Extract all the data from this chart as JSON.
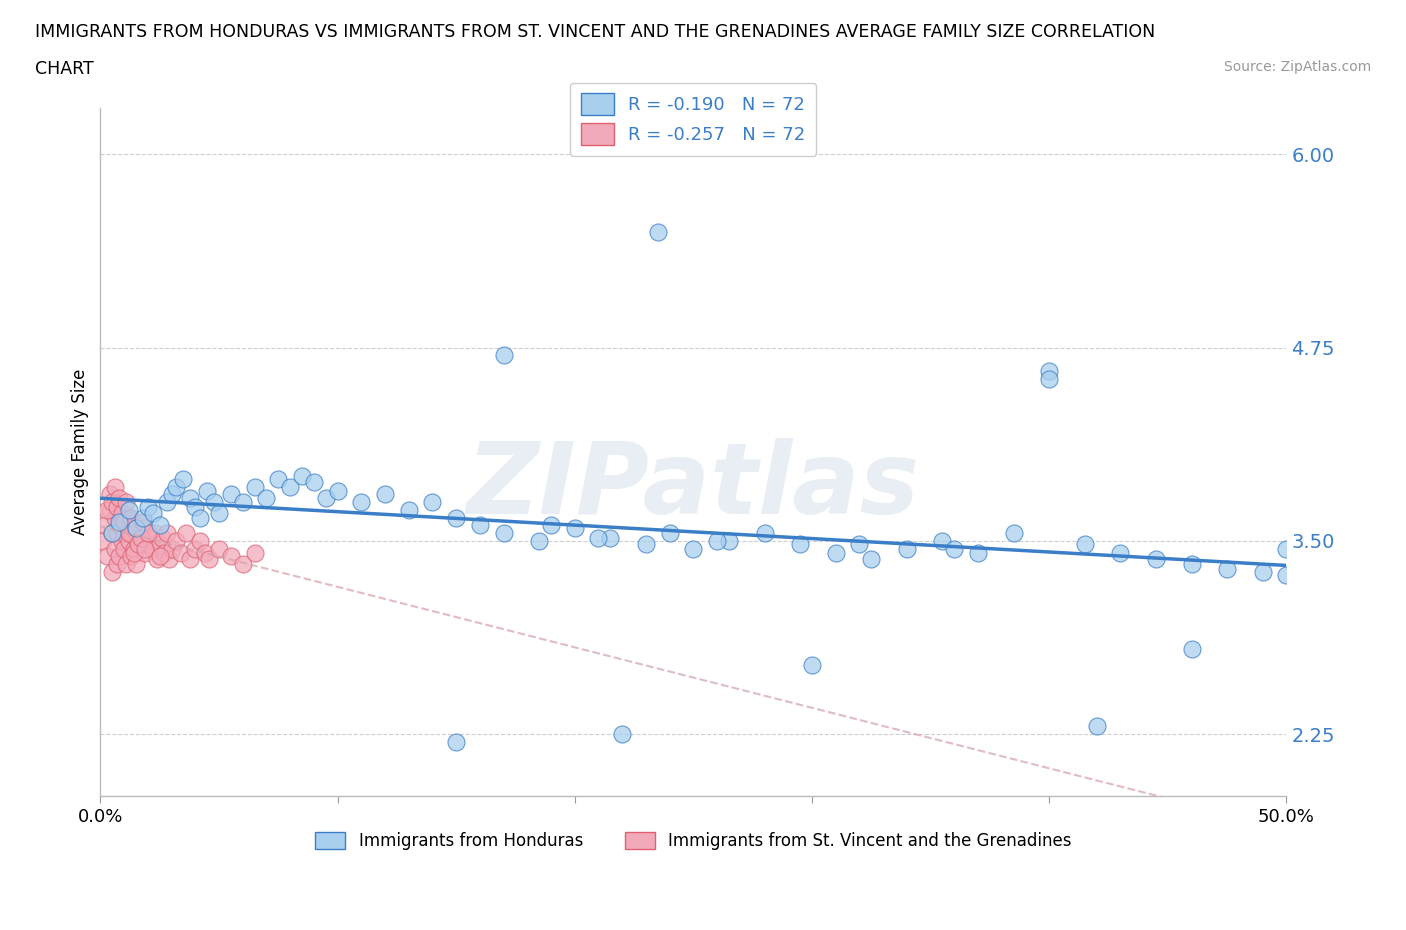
{
  "title_line1": "IMMIGRANTS FROM HONDURAS VS IMMIGRANTS FROM ST. VINCENT AND THE GRENADINES AVERAGE FAMILY SIZE CORRELATION",
  "title_line2": "CHART",
  "source": "Source: ZipAtlas.com",
  "ylabel": "Average Family Size",
  "xlim": [
    0.0,
    0.5
  ],
  "ylim": [
    1.85,
    6.3
  ],
  "yticks": [
    2.25,
    3.5,
    4.75,
    6.0
  ],
  "ytick_labels": [
    "2.25",
    "3.50",
    "4.75",
    "6.00"
  ],
  "xtick_vals": [
    0.0,
    0.1,
    0.2,
    0.3,
    0.4,
    0.5
  ],
  "xtick_labels": [
    "0.0%",
    "",
    "",
    "",
    "",
    "50.0%"
  ],
  "legend_entry1": "R = -0.190   N = 72",
  "legend_entry2": "R = -0.257   N = 72",
  "legend_label1": "Immigrants from Honduras",
  "legend_label2": "Immigrants from St. Vincent and the Grenadines",
  "color_blue": "#A8CFEE",
  "color_pink": "#F2AABB",
  "color_blue_line": "#3B7EC8",
  "color_pink_line": "#E06070",
  "color_dashed_line": "#C8C8D0",
  "watermark": "ZIPatlas",
  "hon_x": [
    0.005,
    0.008,
    0.012,
    0.015,
    0.018,
    0.02,
    0.022,
    0.025,
    0.028,
    0.03,
    0.032,
    0.035,
    0.038,
    0.04,
    0.042,
    0.045,
    0.048,
    0.05,
    0.055,
    0.06,
    0.065,
    0.07,
    0.075,
    0.08,
    0.085,
    0.09,
    0.095,
    0.1,
    0.11,
    0.12,
    0.13,
    0.14,
    0.15,
    0.16,
    0.17,
    0.185,
    0.2,
    0.215,
    0.23,
    0.235,
    0.25,
    0.265,
    0.28,
    0.295,
    0.31,
    0.325,
    0.34,
    0.355,
    0.37,
    0.385,
    0.4,
    0.415,
    0.43,
    0.445,
    0.46,
    0.475,
    0.49,
    0.5,
    0.17,
    0.19,
    0.21,
    0.24,
    0.26,
    0.32,
    0.36,
    0.4,
    0.15,
    0.22,
    0.3,
    0.42,
    0.46,
    0.5
  ],
  "hon_y": [
    3.55,
    3.62,
    3.7,
    3.58,
    3.65,
    3.72,
    3.68,
    3.6,
    3.75,
    3.8,
    3.85,
    3.9,
    3.78,
    3.72,
    3.65,
    3.82,
    3.75,
    3.68,
    3.8,
    3.75,
    3.85,
    3.78,
    3.9,
    3.85,
    3.92,
    3.88,
    3.78,
    3.82,
    3.75,
    3.8,
    3.7,
    3.75,
    3.65,
    3.6,
    3.55,
    3.5,
    3.58,
    3.52,
    3.48,
    5.5,
    3.45,
    3.5,
    3.55,
    3.48,
    3.42,
    3.38,
    3.45,
    3.5,
    3.42,
    3.55,
    4.6,
    3.48,
    3.42,
    3.38,
    3.35,
    3.32,
    3.3,
    3.28,
    4.7,
    3.6,
    3.52,
    3.55,
    3.5,
    3.48,
    3.45,
    4.55,
    2.2,
    2.25,
    2.7,
    2.3,
    2.8,
    3.45
  ],
  "stv_x": [
    0.001,
    0.002,
    0.003,
    0.004,
    0.005,
    0.005,
    0.006,
    0.006,
    0.007,
    0.007,
    0.008,
    0.008,
    0.009,
    0.009,
    0.01,
    0.01,
    0.011,
    0.011,
    0.012,
    0.012,
    0.013,
    0.013,
    0.014,
    0.014,
    0.015,
    0.015,
    0.016,
    0.017,
    0.018,
    0.019,
    0.02,
    0.021,
    0.022,
    0.023,
    0.024,
    0.025,
    0.026,
    0.027,
    0.028,
    0.029,
    0.03,
    0.032,
    0.034,
    0.036,
    0.038,
    0.04,
    0.042,
    0.044,
    0.046,
    0.05,
    0.055,
    0.06,
    0.065,
    0.003,
    0.004,
    0.005,
    0.006,
    0.007,
    0.008,
    0.009,
    0.01,
    0.011,
    0.012,
    0.013,
    0.014,
    0.015,
    0.016,
    0.017,
    0.018,
    0.019,
    0.02,
    0.025
  ],
  "stv_y": [
    3.5,
    3.6,
    3.4,
    3.7,
    3.3,
    3.55,
    3.45,
    3.65,
    3.35,
    3.55,
    3.6,
    3.4,
    3.5,
    3.65,
    3.45,
    3.55,
    3.6,
    3.35,
    3.5,
    3.65,
    3.4,
    3.55,
    3.6,
    3.45,
    3.35,
    3.55,
    3.48,
    3.52,
    3.58,
    3.42,
    3.48,
    3.52,
    3.45,
    3.55,
    3.38,
    3.48,
    3.52,
    3.42,
    3.55,
    3.38,
    3.45,
    3.5,
    3.42,
    3.55,
    3.38,
    3.45,
    3.5,
    3.42,
    3.38,
    3.45,
    3.4,
    3.35,
    3.42,
    3.7,
    3.8,
    3.75,
    3.85,
    3.72,
    3.78,
    3.68,
    3.62,
    3.75,
    3.55,
    3.65,
    3.42,
    3.58,
    3.48,
    3.52,
    3.62,
    3.45,
    3.55,
    3.4
  ]
}
